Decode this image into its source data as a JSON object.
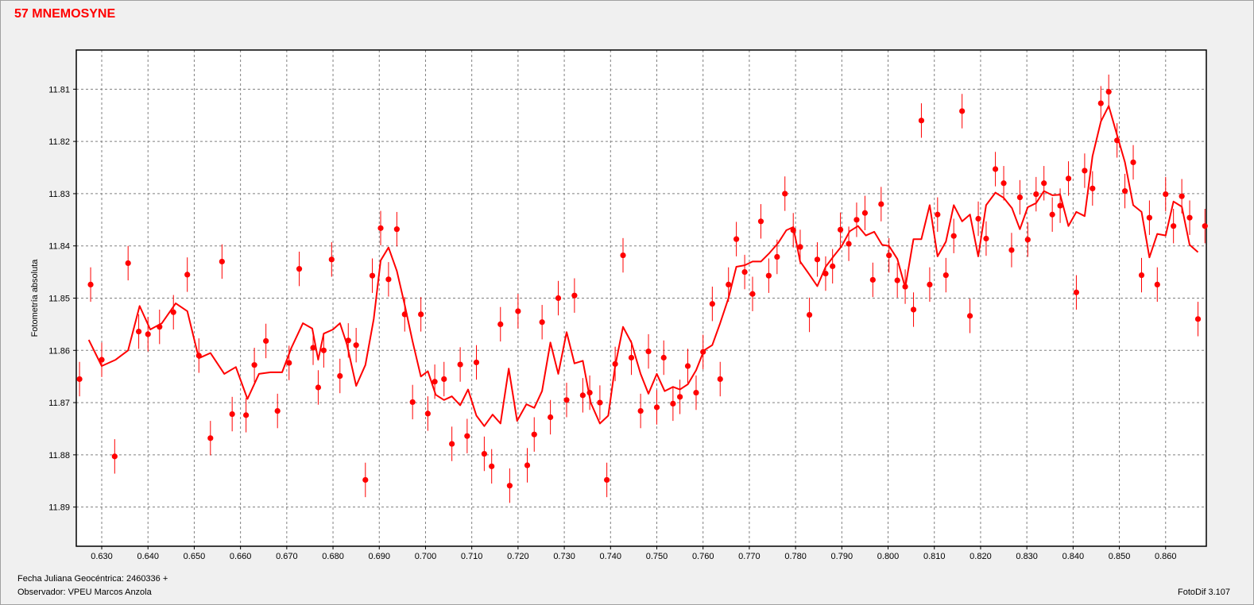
{
  "title": "57 MNEMOSYNE",
  "footer": {
    "jd_label": "Fecha Juliana Geocéntrica: 2460336 +",
    "observer": "Observador: VPEU Marcos Anzola",
    "software": "FotoDif 3.107"
  },
  "colors": {
    "series": "#ff0000",
    "grid": "#808080",
    "background": "#f0f0f0",
    "plot_bg": "#ffffff"
  },
  "chart_data": {
    "type": "scatter",
    "title": "",
    "xlabel": "",
    "ylabel": "Fotometría absoluta",
    "xlim": [
      0.6245,
      0.8688
    ],
    "ylim": [
      11.8975,
      11.8025
    ],
    "y_inverted": true,
    "grid": true,
    "x_ticks": [
      0.63,
      0.64,
      0.65,
      0.66,
      0.67,
      0.68,
      0.69,
      0.7,
      0.71,
      0.72,
      0.73,
      0.74,
      0.75,
      0.76,
      0.77,
      0.78,
      0.79,
      0.8,
      0.81,
      0.82,
      0.83,
      0.84,
      0.85,
      0.86
    ],
    "y_ticks": [
      11.81,
      11.82,
      11.83,
      11.84,
      11.85,
      11.86,
      11.87,
      11.88,
      11.89
    ],
    "series": [
      {
        "type": "scatter_errorbar",
        "error": 0.0033,
        "points": [
          [
            0.6252,
            11.8655
          ],
          [
            0.6276,
            11.8474
          ],
          [
            0.63,
            11.8618
          ],
          [
            0.6328,
            11.8803
          ],
          [
            0.6357,
            11.8433
          ],
          [
            0.638,
            11.8564
          ],
          [
            0.64,
            11.8569
          ],
          [
            0.6425,
            11.8555
          ],
          [
            0.6455,
            11.8527
          ],
          [
            0.6485,
            11.8455
          ],
          [
            0.651,
            11.861
          ],
          [
            0.6535,
            11.8768
          ],
          [
            0.656,
            11.843
          ],
          [
            0.6582,
            11.8722
          ],
          [
            0.6612,
            11.8724
          ],
          [
            0.663,
            11.8628
          ],
          [
            0.6655,
            11.8582
          ],
          [
            0.668,
            11.8716
          ],
          [
            0.6705,
            11.8624
          ],
          [
            0.6727,
            11.8444
          ],
          [
            0.6757,
            11.8595
          ],
          [
            0.6768,
            11.8671
          ],
          [
            0.678,
            11.86
          ],
          [
            0.6797,
            11.8426
          ],
          [
            0.6815,
            11.8649
          ],
          [
            0.6833,
            11.8581
          ],
          [
            0.685,
            11.859
          ],
          [
            0.687,
            11.8848
          ],
          [
            0.6885,
            11.8457
          ],
          [
            0.6903,
            11.8366
          ],
          [
            0.692,
            11.8464
          ],
          [
            0.6938,
            11.8368
          ],
          [
            0.6955,
            11.8531
          ],
          [
            0.6972,
            11.8699
          ],
          [
            0.699,
            11.8531
          ],
          [
            0.7005,
            11.8721
          ],
          [
            0.702,
            11.866
          ],
          [
            0.704,
            11.8655
          ],
          [
            0.7057,
            11.8779
          ],
          [
            0.7075,
            11.8627
          ],
          [
            0.709,
            11.8764
          ],
          [
            0.711,
            11.8623
          ],
          [
            0.7127,
            11.8798
          ],
          [
            0.7143,
            11.8822
          ],
          [
            0.7162,
            11.855
          ],
          [
            0.7182,
            11.8859
          ],
          [
            0.72,
            11.8525
          ],
          [
            0.722,
            11.882
          ],
          [
            0.7235,
            11.8761
          ],
          [
            0.7252,
            11.8546
          ],
          [
            0.727,
            11.8728
          ],
          [
            0.7287,
            11.85
          ],
          [
            0.7305,
            11.8695
          ],
          [
            0.7322,
            11.8495
          ],
          [
            0.734,
            11.8686
          ],
          [
            0.7355,
            11.8681
          ],
          [
            0.7377,
            11.87
          ],
          [
            0.7392,
            11.8848
          ],
          [
            0.741,
            11.8626
          ],
          [
            0.7427,
            11.8418
          ],
          [
            0.7445,
            11.8614
          ],
          [
            0.7465,
            11.8716
          ],
          [
            0.7482,
            11.8602
          ],
          [
            0.75,
            11.8709
          ],
          [
            0.7515,
            11.8614
          ],
          [
            0.7535,
            11.8702
          ],
          [
            0.755,
            11.8689
          ],
          [
            0.7567,
            11.863
          ],
          [
            0.7585,
            11.8681
          ],
          [
            0.76,
            11.8603
          ],
          [
            0.762,
            11.8511
          ],
          [
            0.7637,
            11.8655
          ],
          [
            0.7655,
            11.8474
          ],
          [
            0.7672,
            11.8387
          ],
          [
            0.769,
            11.845
          ],
          [
            0.7707,
            11.8492
          ],
          [
            0.7725,
            11.8353
          ],
          [
            0.7742,
            11.8457
          ],
          [
            0.776,
            11.8421
          ],
          [
            0.7777,
            11.83
          ],
          [
            0.7795,
            11.837
          ],
          [
            0.781,
            11.8402
          ],
          [
            0.783,
            11.8532
          ],
          [
            0.7847,
            11.8426
          ],
          [
            0.7865,
            11.8453
          ],
          [
            0.788,
            11.8439
          ],
          [
            0.7897,
            11.8369
          ],
          [
            0.7915,
            11.8396
          ],
          [
            0.7932,
            11.835
          ],
          [
            0.795,
            11.8337
          ],
          [
            0.7967,
            11.8465
          ],
          [
            0.7985,
            11.832
          ],
          [
            0.8002,
            11.8418
          ],
          [
            0.802,
            11.8466
          ],
          [
            0.8037,
            11.8478
          ],
          [
            0.8055,
            11.8522
          ],
          [
            0.8072,
            11.816
          ],
          [
            0.809,
            11.8474
          ],
          [
            0.8107,
            11.834
          ],
          [
            0.8125,
            11.8456
          ],
          [
            0.8142,
            11.8381
          ],
          [
            0.816,
            11.8142
          ],
          [
            0.8177,
            11.8534
          ],
          [
            0.8195,
            11.8348
          ],
          [
            0.8212,
            11.8386
          ],
          [
            0.8232,
            11.8253
          ],
          [
            0.825,
            11.828
          ],
          [
            0.8267,
            11.8408
          ],
          [
            0.8285,
            11.8307
          ],
          [
            0.8302,
            11.8388
          ],
          [
            0.832,
            11.8301
          ],
          [
            0.8337,
            11.828
          ],
          [
            0.8355,
            11.834
          ],
          [
            0.8372,
            11.8323
          ],
          [
            0.839,
            11.8271
          ],
          [
            0.8407,
            11.8489
          ],
          [
            0.8425,
            11.8256
          ],
          [
            0.8442,
            11.829
          ],
          [
            0.846,
            11.8127
          ],
          [
            0.8477,
            11.8105
          ],
          [
            0.8495,
            11.8198
          ],
          [
            0.8512,
            11.8295
          ],
          [
            0.853,
            11.824
          ],
          [
            0.8548,
            11.8456
          ],
          [
            0.8565,
            11.8346
          ],
          [
            0.8582,
            11.8474
          ],
          [
            0.86,
            11.8301
          ],
          [
            0.8617,
            11.8362
          ],
          [
            0.8635,
            11.8305
          ],
          [
            0.8652,
            11.8346
          ],
          [
            0.867,
            11.854
          ],
          [
            0.8685,
            11.8362
          ]
        ]
      },
      {
        "type": "line",
        "points": [
          [
            0.6272,
            11.858
          ],
          [
            0.63,
            11.863
          ],
          [
            0.633,
            11.8618
          ],
          [
            0.6357,
            11.86
          ],
          [
            0.6382,
            11.8515
          ],
          [
            0.6405,
            11.856
          ],
          [
            0.643,
            11.8548
          ],
          [
            0.646,
            11.851
          ],
          [
            0.6485,
            11.8525
          ],
          [
            0.651,
            11.8615
          ],
          [
            0.6535,
            11.8605
          ],
          [
            0.6565,
            11.8645
          ],
          [
            0.659,
            11.8632
          ],
          [
            0.6615,
            11.8693
          ],
          [
            0.664,
            11.8645
          ],
          [
            0.6665,
            11.8642
          ],
          [
            0.669,
            11.8642
          ],
          [
            0.671,
            11.8595
          ],
          [
            0.6735,
            11.8548
          ],
          [
            0.6755,
            11.8558
          ],
          [
            0.6768,
            11.8618
          ],
          [
            0.678,
            11.8568
          ],
          [
            0.68,
            11.856
          ],
          [
            0.6815,
            11.8548
          ],
          [
            0.683,
            11.8588
          ],
          [
            0.685,
            11.8668
          ],
          [
            0.687,
            11.8628
          ],
          [
            0.6888,
            11.854
          ],
          [
            0.6903,
            11.8428
          ],
          [
            0.692,
            11.8403
          ],
          [
            0.6938,
            11.8448
          ],
          [
            0.6955,
            11.8513
          ],
          [
            0.6972,
            11.8583
          ],
          [
            0.699,
            11.865
          ],
          [
            0.7005,
            11.864
          ],
          [
            0.7022,
            11.8685
          ],
          [
            0.704,
            11.8695
          ],
          [
            0.7057,
            11.8688
          ],
          [
            0.7075,
            11.8705
          ],
          [
            0.7092,
            11.8675
          ],
          [
            0.711,
            11.8725
          ],
          [
            0.7127,
            11.8745
          ],
          [
            0.7145,
            11.8723
          ],
          [
            0.7162,
            11.874
          ],
          [
            0.718,
            11.8635
          ],
          [
            0.7198,
            11.8735
          ],
          [
            0.7218,
            11.8703
          ],
          [
            0.7235,
            11.871
          ],
          [
            0.7252,
            11.8678
          ],
          [
            0.727,
            11.8585
          ],
          [
            0.7287,
            11.8645
          ],
          [
            0.7305,
            11.8565
          ],
          [
            0.7322,
            11.8625
          ],
          [
            0.734,
            11.862
          ],
          [
            0.7357,
            11.87
          ],
          [
            0.7377,
            11.874
          ],
          [
            0.7395,
            11.8725
          ],
          [
            0.741,
            11.863
          ],
          [
            0.7427,
            11.8555
          ],
          [
            0.7445,
            11.8585
          ],
          [
            0.7465,
            11.8645
          ],
          [
            0.7482,
            11.8683
          ],
          [
            0.75,
            11.8645
          ],
          [
            0.7517,
            11.8678
          ],
          [
            0.7535,
            11.867
          ],
          [
            0.755,
            11.8675
          ],
          [
            0.7567,
            11.8665
          ],
          [
            0.7585,
            11.8638
          ],
          [
            0.7602,
            11.86
          ],
          [
            0.762,
            11.859
          ],
          [
            0.7637,
            11.8548
          ],
          [
            0.7655,
            11.85
          ],
          [
            0.7672,
            11.844
          ],
          [
            0.769,
            11.8437
          ],
          [
            0.7707,
            11.843
          ],
          [
            0.7725,
            11.843
          ],
          [
            0.7742,
            11.8415
          ],
          [
            0.7762,
            11.8395
          ],
          [
            0.778,
            11.837
          ],
          [
            0.7795,
            11.8364
          ],
          [
            0.781,
            11.843
          ],
          [
            0.783,
            11.8455
          ],
          [
            0.7847,
            11.8477
          ],
          [
            0.7865,
            11.844
          ],
          [
            0.7882,
            11.842
          ],
          [
            0.79,
            11.84
          ],
          [
            0.7917,
            11.8372
          ],
          [
            0.7935,
            11.8362
          ],
          [
            0.7952,
            11.838
          ],
          [
            0.797,
            11.8373
          ],
          [
            0.7987,
            11.8398
          ],
          [
            0.8002,
            11.84
          ],
          [
            0.802,
            11.8425
          ],
          [
            0.8037,
            11.848
          ],
          [
            0.8055,
            11.8387
          ],
          [
            0.8072,
            11.8387
          ],
          [
            0.809,
            11.8322
          ],
          [
            0.8107,
            11.842
          ],
          [
            0.8125,
            11.8392
          ],
          [
            0.8142,
            11.8322
          ],
          [
            0.816,
            11.8353
          ],
          [
            0.8177,
            11.834
          ],
          [
            0.8195,
            11.842
          ],
          [
            0.8212,
            11.8322
          ],
          [
            0.8232,
            11.8298
          ],
          [
            0.825,
            11.8308
          ],
          [
            0.8268,
            11.8328
          ],
          [
            0.8285,
            11.8368
          ],
          [
            0.8302,
            11.8326
          ],
          [
            0.832,
            11.8318
          ],
          [
            0.8337,
            11.8295
          ],
          [
            0.8355,
            11.8303
          ],
          [
            0.8372,
            11.8302
          ],
          [
            0.839,
            11.8362
          ],
          [
            0.8407,
            11.8335
          ],
          [
            0.8425,
            11.8343
          ],
          [
            0.8442,
            11.8228
          ],
          [
            0.846,
            11.8162
          ],
          [
            0.8477,
            11.8132
          ],
          [
            0.8495,
            11.8188
          ],
          [
            0.8512,
            11.824
          ],
          [
            0.853,
            11.8322
          ],
          [
            0.8548,
            11.8335
          ],
          [
            0.8565,
            11.8422
          ],
          [
            0.8582,
            11.8377
          ],
          [
            0.86,
            11.838
          ],
          [
            0.8617,
            11.8315
          ],
          [
            0.8635,
            11.8325
          ],
          [
            0.8652,
            11.8398
          ],
          [
            0.867,
            11.8412
          ]
        ]
      }
    ]
  }
}
